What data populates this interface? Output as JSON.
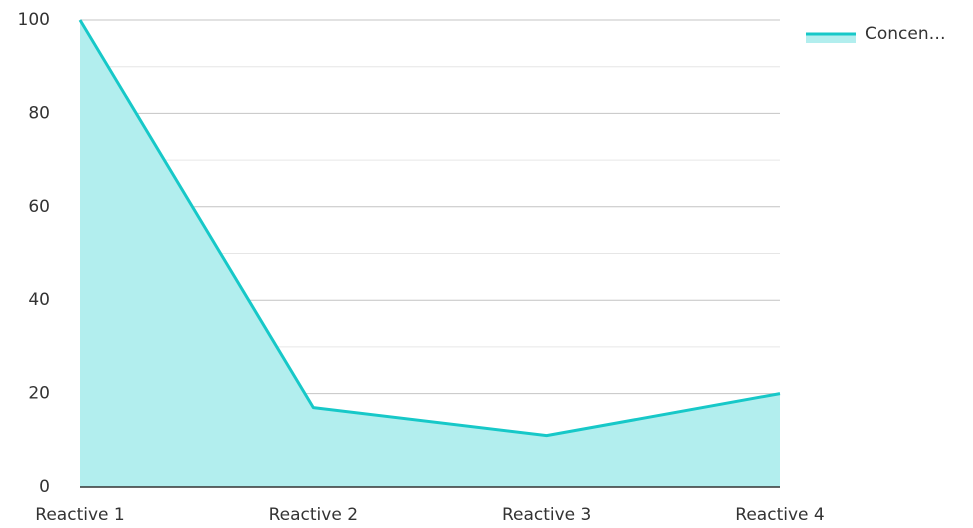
{
  "chart_data": {
    "type": "area",
    "categories": [
      "Reactive 1",
      "Reactive 2",
      "Reactive 3",
      "Reactive 4"
    ],
    "series": [
      {
        "name": "Concen…",
        "color": "#17c8c8",
        "fill": "#b2eeee",
        "values": [
          100,
          17,
          11,
          20
        ]
      }
    ],
    "ylim": [
      0,
      100
    ],
    "yticks": [
      0,
      20,
      40,
      60,
      80,
      100
    ],
    "minor_yticks": [
      10,
      30,
      50,
      70,
      90
    ],
    "grid": true,
    "legend": "top-right"
  }
}
